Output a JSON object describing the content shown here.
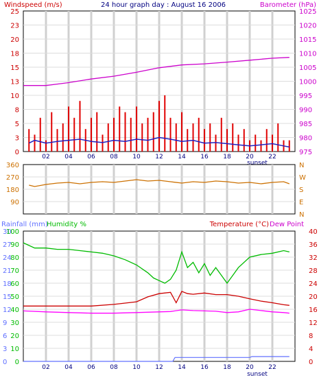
{
  "chart_data": [
    {
      "type": "line",
      "title": "24 hour graph day : August 16 2006",
      "left_axis_label": "Windspeed (m/s)",
      "right_axis_label": "Barometer (hPa)",
      "x_ticks": [
        "02",
        "04",
        "06",
        "08",
        "10",
        "12",
        "14",
        "16",
        "18",
        "20",
        "22"
      ],
      "x_note": "sunset",
      "left_ylim": [
        0,
        25
      ],
      "left_ticks": [
        "0",
        "3",
        "5",
        "8",
        "10",
        "13",
        "15",
        "18",
        "20",
        "23",
        "25"
      ],
      "right_ylim": [
        975,
        1025
      ],
      "right_ticks": [
        "975",
        "980",
        "985",
        "990",
        "995",
        "1000",
        "1005",
        "1010",
        "1015",
        "1020",
        "1025"
      ],
      "grid": true,
      "series": [
        {
          "name": "Windspeed (m/s)",
          "axis": "left",
          "color": "#e00000",
          "style": "gust spikes",
          "x": [
            0.5,
            1.0,
            1.5,
            2.0,
            2.5,
            3.0,
            3.5,
            4.0,
            4.5,
            5.0,
            5.5,
            6.0,
            6.5,
            7.0,
            7.5,
            8.0,
            8.5,
            9.0,
            9.5,
            10.0,
            10.5,
            11.0,
            11.5,
            12.0,
            12.5,
            13.0,
            13.5,
            14.0,
            14.5,
            15.0,
            15.5,
            16.0,
            16.5,
            17.0,
            17.5,
            18.0,
            18.5,
            19.0,
            19.5,
            20.0,
            20.5,
            21.0,
            21.5,
            22.0,
            22.5,
            23.0,
            23.5
          ],
          "values": [
            4,
            3,
            6,
            2,
            7,
            4,
            5,
            8,
            6,
            9,
            4,
            6,
            7,
            3,
            5,
            6,
            8,
            7,
            6,
            8,
            5,
            6,
            7,
            9,
            10,
            6,
            5,
            7,
            4,
            5,
            6,
            4,
            5,
            3,
            6,
            4,
            5,
            3,
            4,
            2,
            3,
            2,
            4,
            3,
            5,
            2,
            2
          ]
        },
        {
          "name": "Average wind",
          "axis": "left",
          "color": "#2020c0",
          "x": [
            0.5,
            1.0,
            2.0,
            3.0,
            4.0,
            5.0,
            6.0,
            7.0,
            8.0,
            9.0,
            10.0,
            11.0,
            12.0,
            13.0,
            14.0,
            15.0,
            16.0,
            17.0,
            18.0,
            19.0,
            20.0,
            21.0,
            22.0,
            23.0,
            23.5
          ],
          "values": [
            1.5,
            2.0,
            1.5,
            1.8,
            2.0,
            2.2,
            1.8,
            1.6,
            2.0,
            1.8,
            2.2,
            2.0,
            2.5,
            2.2,
            1.8,
            2.0,
            1.5,
            1.6,
            1.4,
            1.2,
            1.0,
            1.2,
            1.4,
            1.0,
            0.8
          ]
        },
        {
          "name": "Barometer (hPa)",
          "axis": "right",
          "color": "#cc00cc",
          "x": [
            0.0,
            2.0,
            3.0,
            4.0,
            6.0,
            8.0,
            10.0,
            12.0,
            14.0,
            16.0,
            18.0,
            20.0,
            22.0,
            23.5
          ],
          "values": [
            998.5,
            998.5,
            999.0,
            999.5,
            1000.8,
            1001.8,
            1003.2,
            1004.8,
            1005.8,
            1006.2,
            1006.8,
            1007.5,
            1008.2,
            1008.5
          ]
        }
      ]
    },
    {
      "type": "line",
      "title": "",
      "left_ylim": [
        0,
        360
      ],
      "left_ticks": [
        "90",
        "180",
        "270",
        "360"
      ],
      "right_ticks": [
        "N",
        "W",
        "S",
        "E",
        "N"
      ],
      "x_ticks": [
        "02",
        "04",
        "06",
        "08",
        "10",
        "12",
        "14",
        "16",
        "18",
        "20",
        "22"
      ],
      "grid": true,
      "series": [
        {
          "name": "Wind direction",
          "axis": "left",
          "color": "#cc7000",
          "x": [
            0.5,
            1.0,
            2.0,
            3.0,
            4.0,
            5.0,
            6.0,
            7.0,
            8.0,
            9.0,
            10.0,
            11.0,
            12.0,
            13.0,
            14.0,
            15.0,
            16.0,
            17.0,
            18.0,
            19.0,
            20.0,
            21.0,
            22.0,
            23.0,
            23.5
          ],
          "values": [
            210,
            200,
            215,
            225,
            230,
            220,
            230,
            235,
            230,
            240,
            250,
            240,
            245,
            235,
            225,
            235,
            230,
            240,
            235,
            225,
            230,
            220,
            230,
            235,
            220
          ]
        }
      ]
    },
    {
      "type": "line",
      "title": "",
      "rainfall_label": "Rainfall (mm)",
      "humidity_label": "Humidity %",
      "temperature_label": "Temperature (°C)",
      "dewpoint_label": "Dew Point",
      "x_ticks": [
        "02",
        "04",
        "06",
        "08",
        "10",
        "12",
        "14",
        "16",
        "18",
        "20",
        "22"
      ],
      "x_note": "sunset",
      "rain_ticks": [
        "0",
        "3",
        "6",
        "9",
        "12",
        "15",
        "18",
        "21",
        "24",
        "27",
        "30"
      ],
      "rain_ylim": [
        0,
        30
      ],
      "humidity_ticks": [
        "0",
        "10",
        "20",
        "30",
        "40",
        "50",
        "60",
        "70",
        "80",
        "90",
        "100"
      ],
      "humidity_ylim": [
        0,
        100
      ],
      "temp_ticks": [
        "0",
        "4",
        "8",
        "12",
        "16",
        "20",
        "24",
        "28",
        "32",
        "36",
        "40"
      ],
      "temp_ylim": [
        0,
        40
      ],
      "grid": true,
      "series": [
        {
          "name": "Humidity %",
          "axis": "humidity",
          "color": "#00bb00",
          "x": [
            0.0,
            1.0,
            2.0,
            3.0,
            4.0,
            5.0,
            6.0,
            7.0,
            8.0,
            9.0,
            10.0,
            11.0,
            11.5,
            12.0,
            12.5,
            13.0,
            13.5,
            14.0,
            14.5,
            15.0,
            15.5,
            16.0,
            16.5,
            17.0,
            17.5,
            18.0,
            18.5,
            19.0,
            20.0,
            21.0,
            22.0,
            23.0,
            23.5
          ],
          "values": [
            91,
            87,
            87,
            86,
            86,
            85,
            84,
            83,
            81,
            78,
            74,
            68,
            64,
            62,
            60,
            63,
            70,
            84,
            72,
            76,
            68,
            75,
            66,
            72,
            66,
            60,
            66,
            72,
            80,
            82,
            83,
            85,
            84
          ]
        },
        {
          "name": "Temperature (°C)",
          "axis": "temp",
          "color": "#cc0000",
          "x": [
            0.0,
            2.0,
            4.0,
            6.0,
            8.0,
            10.0,
            11.0,
            12.0,
            13.0,
            13.5,
            14.0,
            14.5,
            15.0,
            16.0,
            17.0,
            18.0,
            19.0,
            20.0,
            21.0,
            22.0,
            23.0,
            23.5
          ],
          "values": [
            17.0,
            17.0,
            17.0,
            17.0,
            17.5,
            18.3,
            19.8,
            20.8,
            21.2,
            18.0,
            21.5,
            20.8,
            20.6,
            21.0,
            20.5,
            20.5,
            20.0,
            19.2,
            18.5,
            18.0,
            17.4,
            17.2
          ]
        },
        {
          "name": "Dew Point",
          "axis": "temp",
          "color": "#ff00ff",
          "x": [
            0.0,
            2.0,
            4.0,
            6.0,
            8.0,
            10.0,
            12.0,
            13.0,
            14.0,
            15.0,
            16.0,
            17.0,
            18.0,
            19.0,
            20.0,
            21.0,
            22.0,
            23.0,
            23.5
          ],
          "values": [
            15.5,
            15.2,
            15.0,
            14.8,
            14.8,
            15.0,
            15.2,
            15.3,
            15.8,
            15.6,
            15.5,
            15.4,
            15.0,
            15.2,
            16.0,
            15.6,
            15.2,
            15.0,
            14.8
          ]
        },
        {
          "name": "Rainfall (mm)",
          "axis": "rain",
          "color": "#6070ff",
          "x": [
            0.0,
            13.2,
            13.4,
            20.0,
            20.2,
            23.5
          ],
          "values": [
            0.0,
            0.0,
            0.9,
            0.9,
            1.1,
            1.1
          ]
        }
      ]
    }
  ],
  "colors": {
    "wind": "#e00000",
    "avg_wind": "#2020c0",
    "baro": "#cc00cc",
    "direction": "#cc7000",
    "humidity": "#00bb00",
    "temperature": "#cc0000",
    "dewpoint": "#ff00ff",
    "rain": "#6070ff"
  }
}
